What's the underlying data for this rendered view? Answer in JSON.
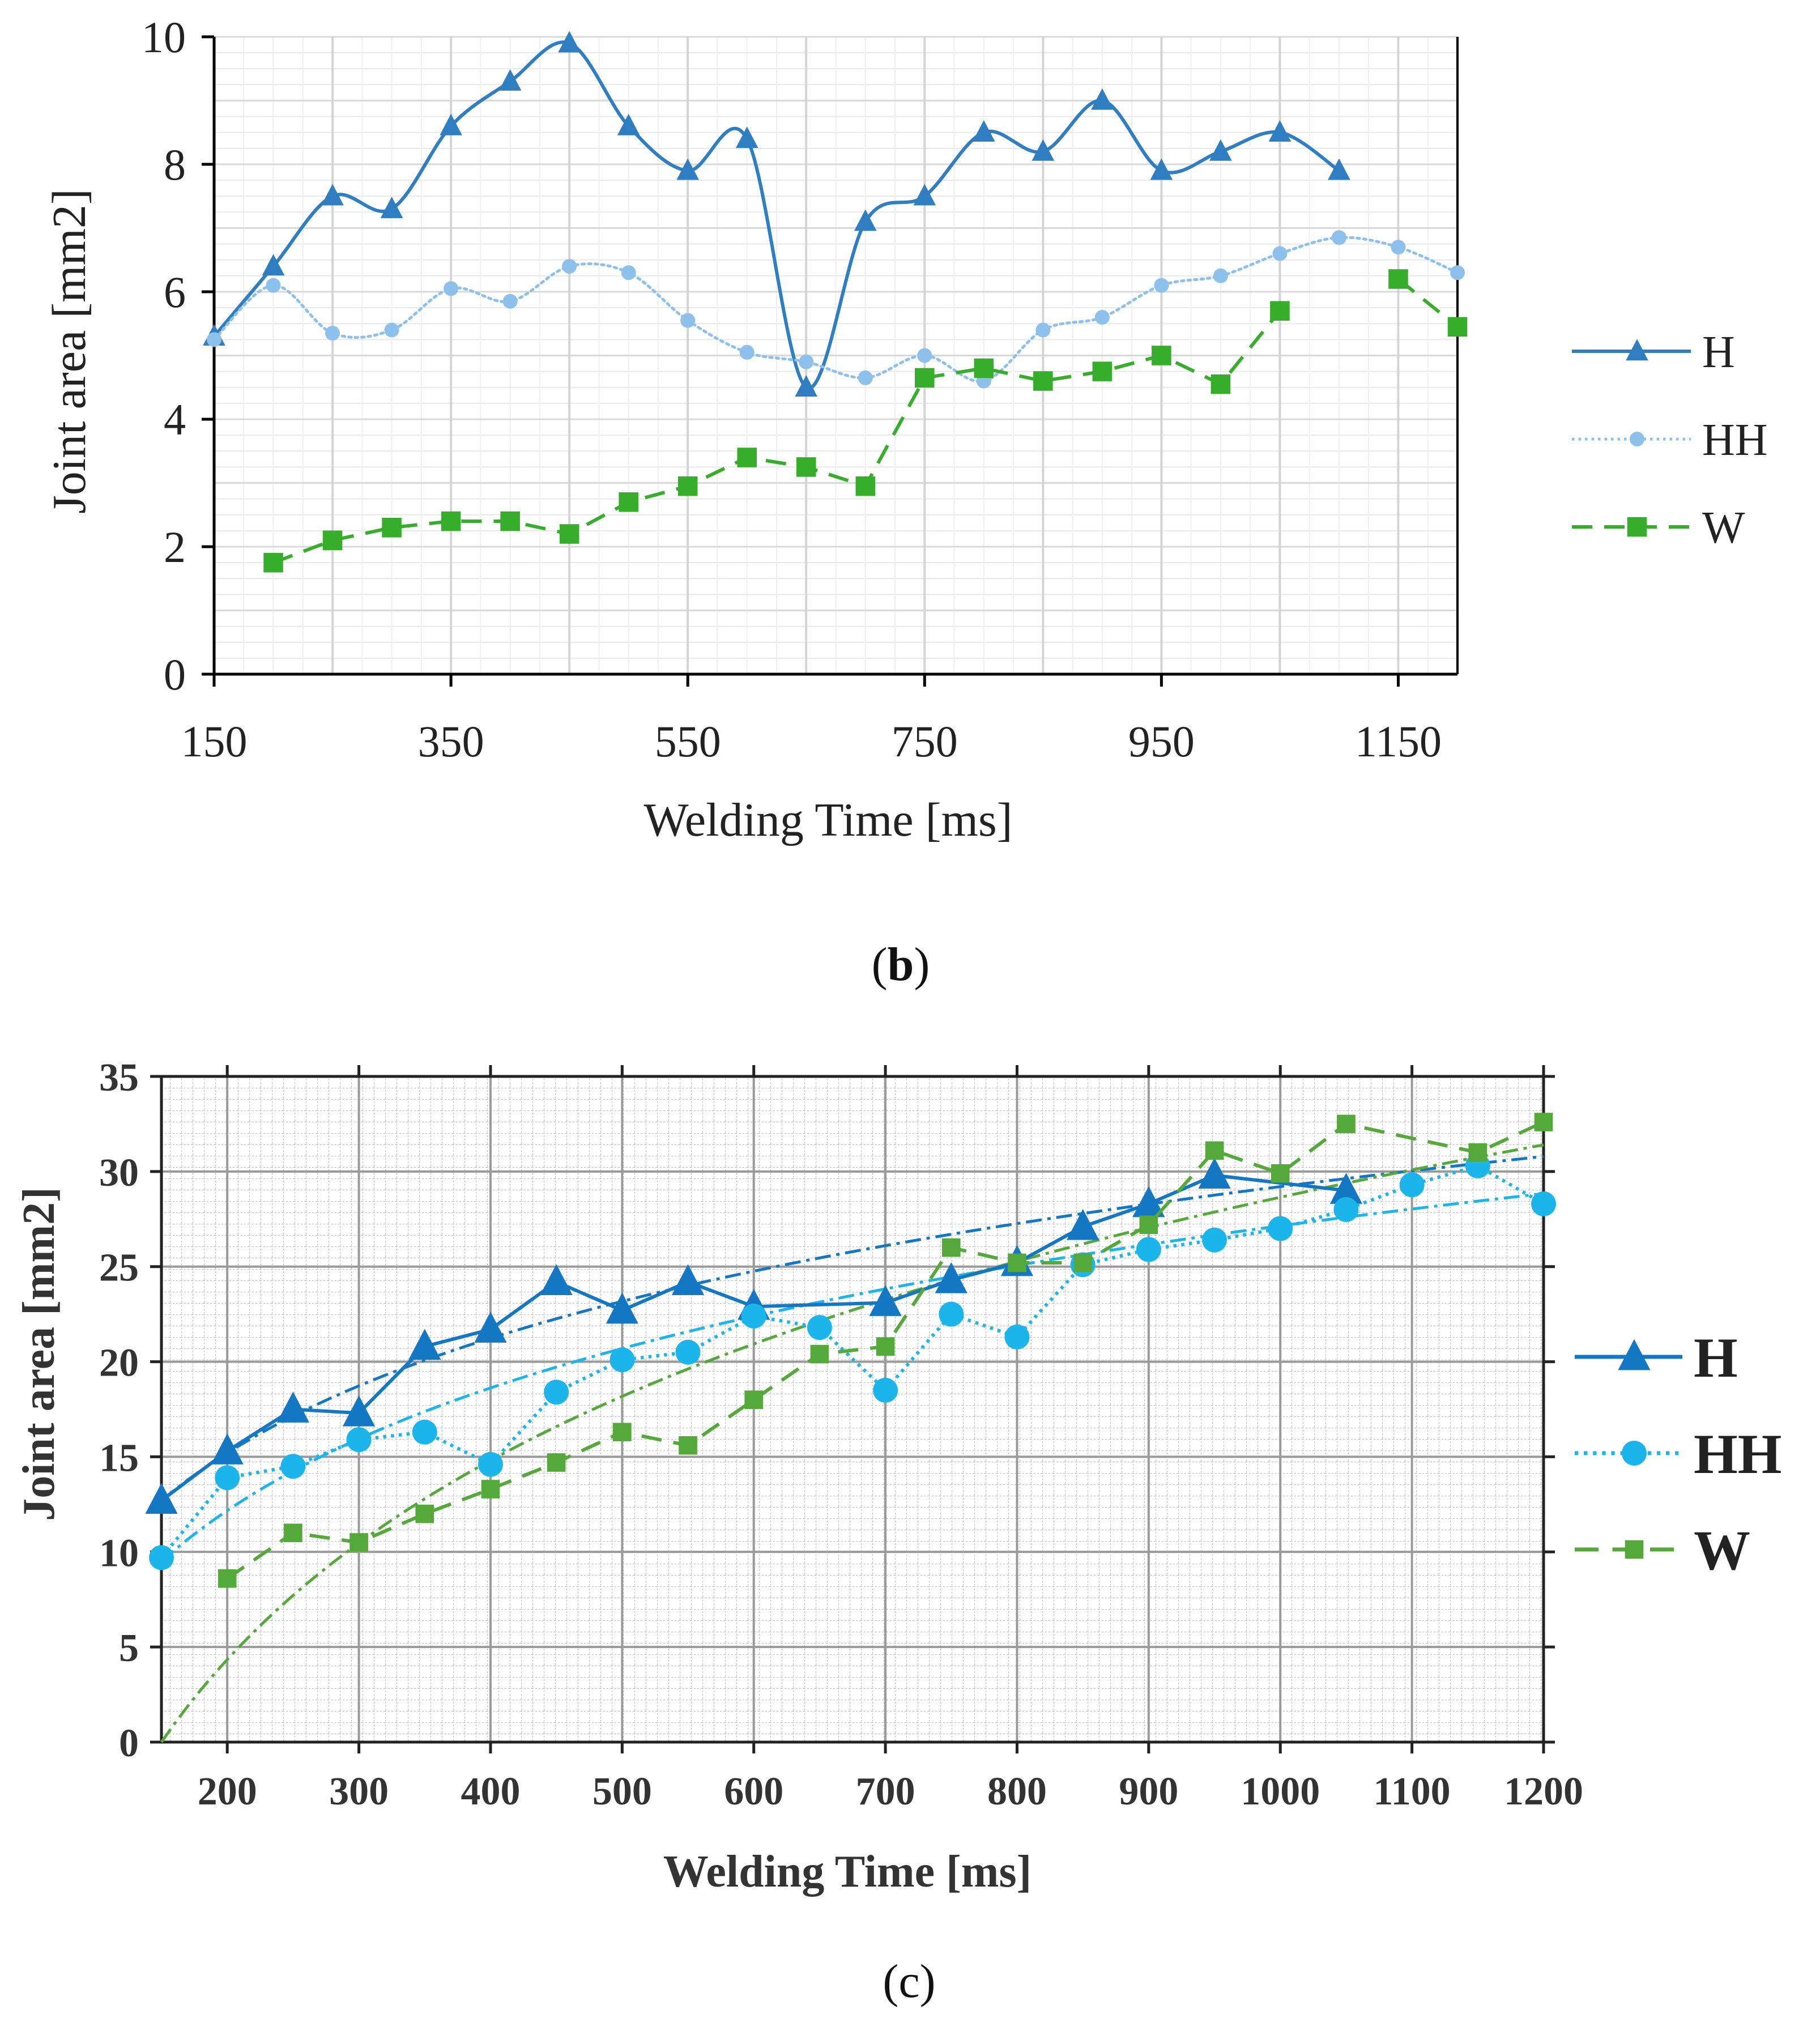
{
  "chart_data": [
    {
      "type": "line",
      "panel_label": "b",
      "xlabel": "Welding Time [ms]",
      "ylabel": "Joint area [mm2]",
      "xlim": [
        150,
        1200
      ],
      "ylim": [
        0,
        10
      ],
      "xticks": [
        150,
        350,
        550,
        750,
        950,
        1150
      ],
      "yticks": [
        0,
        2,
        4,
        6,
        8,
        10
      ],
      "grid": true,
      "legend_position": "right",
      "series": [
        {
          "name": "H",
          "color": "#2e7ec1",
          "marker": "triangle",
          "dash": "solid",
          "x": [
            150,
            200,
            250,
            300,
            350,
            400,
            450,
            500,
            550,
            600,
            650,
            700,
            750,
            800,
            850,
            900,
            950,
            1000,
            1050,
            1100
          ],
          "y": [
            5.3,
            6.4,
            7.5,
            7.3,
            8.6,
            9.3,
            9.9,
            8.6,
            7.9,
            8.4,
            4.5,
            7.1,
            7.5,
            8.5,
            8.2,
            9.0,
            7.9,
            8.2,
            8.5,
            7.9
          ]
        },
        {
          "name": "HH",
          "color": "#8dc1ec",
          "marker": "circle",
          "dash": "dotted",
          "x": [
            150,
            200,
            250,
            300,
            350,
            400,
            450,
            500,
            550,
            600,
            650,
            700,
            750,
            800,
            850,
            900,
            950,
            1000,
            1050,
            1100,
            1150,
            1200
          ],
          "y": [
            5.25,
            6.1,
            5.35,
            5.4,
            6.05,
            5.85,
            6.4,
            6.3,
            5.55,
            5.05,
            4.9,
            4.65,
            5.0,
            4.6,
            5.4,
            5.6,
            6.1,
            6.25,
            6.6,
            6.85,
            6.7,
            6.3
          ]
        },
        {
          "name": "W",
          "color": "#37ad2c",
          "marker": "square",
          "dash": "dashed",
          "segments": [
            {
              "x": [
                200,
                250,
                300,
                350,
                400,
                450,
                500,
                550,
                600,
                650,
                700,
                750,
                800,
                850,
                900,
                950,
                1000,
                1050
              ],
              "y": [
                1.75,
                2.1,
                2.3,
                2.4,
                2.4,
                2.2,
                2.7,
                2.95,
                3.4,
                3.25,
                2.95,
                4.65,
                4.8,
                4.6,
                4.75,
                5.0,
                4.55,
                5.7
              ]
            },
            {
              "x": [
                1150,
                1200
              ],
              "y": [
                6.2,
                5.45
              ]
            }
          ]
        }
      ]
    },
    {
      "type": "line",
      "panel_label": "c",
      "xlabel": "Welding Time [ms]",
      "ylabel": "Joint area [mm2]",
      "xlim": [
        150,
        1200
      ],
      "ylim": [
        0,
        35
      ],
      "xticks": [
        200,
        300,
        400,
        500,
        600,
        700,
        800,
        900,
        1000,
        1100,
        1200
      ],
      "yticks": [
        0,
        5,
        10,
        15,
        20,
        25,
        30,
        35
      ],
      "grid": true,
      "legend_position": "right",
      "series": [
        {
          "name": "H",
          "color": "#1377c4",
          "marker": "triangle",
          "dash": "solid",
          "x": [
            150,
            200,
            250,
            300,
            350,
            400,
            450,
            500,
            550,
            600,
            700,
            750,
            800,
            850,
            900,
            950,
            1050
          ],
          "y": [
            12.7,
            15.3,
            17.5,
            17.3,
            20.8,
            21.7,
            24.2,
            22.7,
            24.2,
            22.9,
            23.1,
            24.3,
            25.2,
            27.1,
            28.3,
            29.8,
            29.0
          ]
        },
        {
          "name": "HH",
          "color": "#1cb5eb",
          "marker": "circle",
          "dash": "dotted",
          "x": [
            150,
            200,
            250,
            300,
            350,
            400,
            450,
            500,
            550,
            600,
            650,
            700,
            750,
            800,
            850,
            900,
            950,
            1000,
            1050,
            1100,
            1150,
            1200
          ],
          "y": [
            9.7,
            13.9,
            14.5,
            15.9,
            16.3,
            14.6,
            18.4,
            20.1,
            20.5,
            22.4,
            21.8,
            18.5,
            22.5,
            21.3,
            25.1,
            25.9,
            26.4,
            27.0,
            28.0,
            29.3,
            30.3,
            28.3
          ]
        },
        {
          "name": "W",
          "color": "#55a83a",
          "marker": "square",
          "dash": "dashed",
          "x": [
            200,
            250,
            300,
            350,
            400,
            450,
            500,
            550,
            600,
            650,
            700,
            750,
            800,
            850,
            900,
            950,
            1000,
            1050,
            1150,
            1200
          ],
          "y": [
            8.6,
            11.0,
            10.5,
            12.0,
            13.3,
            14.7,
            16.3,
            15.6,
            18.0,
            20.4,
            20.8,
            26.0,
            25.2,
            25.2,
            27.2,
            31.1,
            29.9,
            32.5,
            31.0,
            32.6
          ]
        }
      ],
      "trendlines": [
        {
          "series": "H",
          "color": "#1377c4",
          "kind": "logarithmic",
          "a": 8.7,
          "b": 12.7
        },
        {
          "series": "HH",
          "color": "#1cb5eb",
          "kind": "logarithmic",
          "a": 9.3,
          "b": 9.5
        },
        {
          "series": "W",
          "color": "#55a83a",
          "kind": "logarithmic",
          "a": 15.1,
          "b": 0.0
        }
      ]
    }
  ]
}
